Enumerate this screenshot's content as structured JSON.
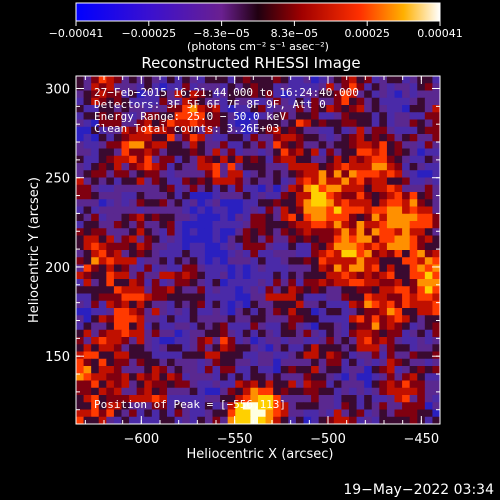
{
  "chart_data": {
    "type": "heatmap",
    "title": "Reconstructed RHESSI Image",
    "xlabel": "Heliocentric X (arcsec)",
    "ylabel": "Heliocentric Y (arcsec)",
    "xlim": [
      -635,
      -440
    ],
    "ylim": [
      112,
      307
    ],
    "x_ticks": [
      {
        "value": -600,
        "label": "−600"
      },
      {
        "value": -550,
        "label": "−550"
      },
      {
        "value": -500,
        "label": "−500"
      },
      {
        "value": -450,
        "label": "−450"
      }
    ],
    "y_ticks": [
      {
        "value": 150,
        "label": "150"
      },
      {
        "value": 200,
        "label": "200"
      },
      {
        "value": 250,
        "label": "250"
      },
      {
        "value": 300,
        "label": "300"
      }
    ],
    "info_lines": [
      "27−Feb−2015 16:21:44.000 to 16:24:40.000",
      "Detectors: 3F 5F 6F 7F 8F 9F, Att 0",
      "Energy Range: 25.0 − 50.0 keV",
      "Clean     Total counts: 3.26E+03"
    ],
    "peak_text": "Position of Peak = [−556,113]",
    "colorbar": {
      "range": [
        -0.00041,
        0.00041
      ],
      "tick_labels": [
        "−0.00041",
        "−0.00025",
        "−8.3e−05",
        "8.3e−05",
        "0.00025",
        "0.00041"
      ],
      "unit_label": "(photons cm⁻² s⁻¹ asec⁻²)"
    },
    "grid": false,
    "legend": "none"
  },
  "footer": {
    "date": "19−May−2022 03:34"
  },
  "colors": {
    "background": "#000000",
    "foreground": "#ffffff"
  }
}
